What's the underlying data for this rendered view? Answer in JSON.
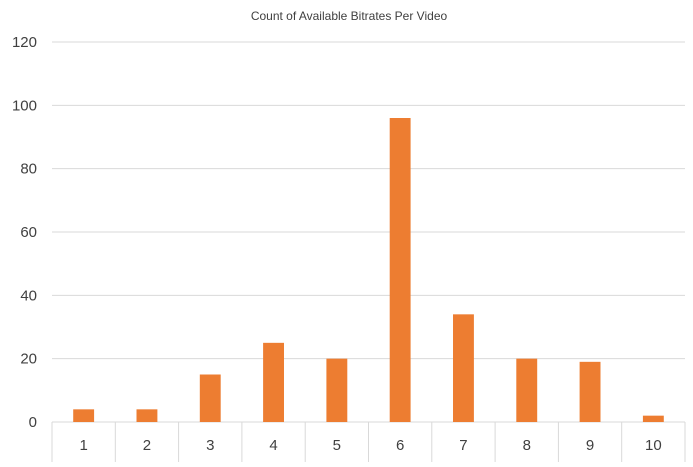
{
  "chart_data": {
    "type": "bar",
    "title": "Count of Available Bitrates Per Video",
    "xlabel": "",
    "ylabel": "",
    "categories": [
      "1",
      "2",
      "3",
      "4",
      "5",
      "6",
      "7",
      "8",
      "9",
      "10"
    ],
    "values": [
      4,
      4,
      15,
      25,
      20,
      96,
      34,
      20,
      19,
      2
    ],
    "ylim": [
      0,
      120
    ],
    "yticks": [
      "0",
      "20",
      "40",
      "60",
      "80",
      "100",
      "120"
    ],
    "grid": true,
    "legend": "none",
    "colors": {
      "bar": "#ed7d31",
      "grid": "#d9d9d9",
      "text": "#404040"
    }
  }
}
